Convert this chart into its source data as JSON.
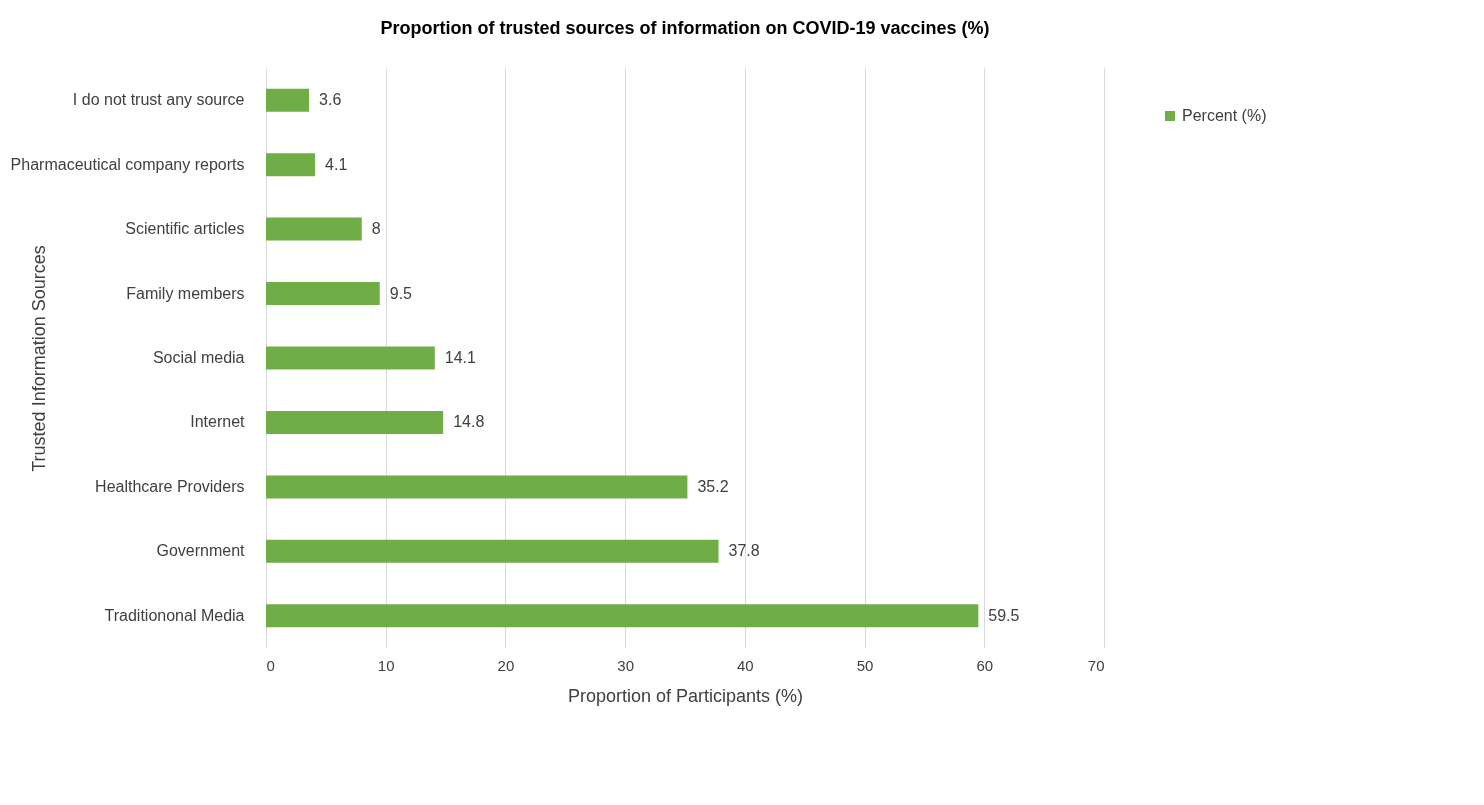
{
  "chart_data": {
    "type": "bar",
    "orientation": "horizontal",
    "title": "Proportion of trusted sources of information on COVID-19 vaccines  (%)",
    "xlabel": "Proportion of Participants (%)",
    "ylabel": "Trusted Information Sources",
    "categories": [
      "I do not trust any source",
      "Pharmaceutical company reports",
      "Scientific articles",
      "Family members",
      "Social media",
      "Internet",
      "Healthcare Providers",
      "Government",
      "Traditiononal Media"
    ],
    "series": [
      {
        "name": "Percent (%)",
        "color": "#70ad47",
        "values": [
          3.6,
          4.1,
          8,
          9.5,
          14.1,
          14.8,
          35.2,
          37.8,
          59.5
        ]
      }
    ],
    "xlim": [
      0,
      70
    ],
    "xticks": [
      0,
      10,
      20,
      30,
      40,
      50,
      60,
      70
    ],
    "grid": "x",
    "legend": "right",
    "data_labels": true
  }
}
